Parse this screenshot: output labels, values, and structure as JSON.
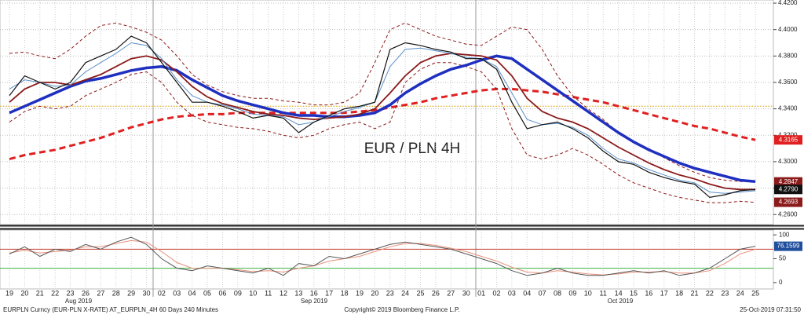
{
  "chart_data": {
    "type": "line",
    "annotation": "EUR / PLN 4H",
    "annotation_color": "#cc1f1f",
    "categories": [
      "19",
      "20",
      "21",
      "22",
      "23",
      "26",
      "27",
      "28",
      "29",
      "30",
      "02",
      "03",
      "04",
      "05",
      "06",
      "09",
      "10",
      "11",
      "12",
      "13",
      "16",
      "17",
      "18",
      "19",
      "20",
      "23",
      "24",
      "25",
      "26",
      "27",
      "30",
      "01",
      "02",
      "03",
      "04",
      "07",
      "08",
      "09",
      "10",
      "11",
      "14",
      "15",
      "16",
      "17",
      "18",
      "21",
      "22",
      "23",
      "24",
      "25"
    ],
    "months": [
      "Aug 2019",
      "Sep 2019",
      "Oct 2019"
    ],
    "ylim": [
      4.253,
      4.4224
    ],
    "yticks": [
      {
        "value": 4.26,
        "label": "4.2600"
      },
      {
        "value": 4.28,
        "label": "4.2800"
      },
      {
        "value": 4.3,
        "label": "4.3000"
      },
      {
        "value": 4.32,
        "label": "4.3200"
      },
      {
        "value": 4.34,
        "label": "4.3400"
      },
      {
        "value": 4.36,
        "label": "4.3600"
      },
      {
        "value": 4.38,
        "label": "4.3800"
      },
      {
        "value": 4.4,
        "label": "4.4000"
      },
      {
        "value": 4.42,
        "label": "4.4200"
      }
    ],
    "grid": true,
    "reference_line": {
      "value": 4.342,
      "color": "#d9a400"
    },
    "series": [
      {
        "color": "#e02020",
        "line_width": 3,
        "style": "dashed",
        "values": [
          4.302,
          4.305,
          4.307,
          4.309,
          4.312,
          4.315,
          4.318,
          4.322,
          4.326,
          4.329,
          4.332,
          4.334,
          4.335,
          4.336,
          4.336,
          4.337,
          4.337,
          4.337,
          4.337,
          4.337,
          4.337,
          4.337,
          4.337,
          4.338,
          4.339,
          4.341,
          4.343,
          4.345,
          4.348,
          4.35,
          4.352,
          4.354,
          4.355,
          4.355,
          4.354,
          4.353,
          4.351,
          4.349,
          4.347,
          4.345,
          4.342,
          4.339,
          4.336,
          4.333,
          4.33,
          4.327,
          4.325,
          4.322,
          4.319,
          4.3165
        ]
      },
      {
        "color": "#8b1a1a",
        "line_width": 1,
        "style": "dashed",
        "values": [
          4.382,
          4.383,
          4.38,
          4.378,
          4.385,
          4.395,
          4.403,
          4.405,
          4.402,
          4.398,
          4.392,
          4.38,
          4.366,
          4.358,
          4.353,
          4.35,
          4.348,
          4.348,
          4.346,
          4.345,
          4.343,
          4.343,
          4.345,
          4.352,
          4.375,
          4.4,
          4.405,
          4.4,
          4.395,
          4.392,
          4.389,
          4.388,
          4.395,
          4.402,
          4.4,
          4.385,
          4.365,
          4.35,
          4.34,
          4.332,
          4.322,
          4.315,
          4.31,
          4.303,
          4.297,
          4.292,
          4.288,
          4.286,
          4.285,
          4.2847
        ]
      },
      {
        "color": "#8b1a1a",
        "line_width": 1,
        "style": "dashed",
        "values": [
          4.33,
          4.338,
          4.342,
          4.34,
          4.342,
          4.35,
          4.355,
          4.36,
          4.366,
          4.368,
          4.36,
          4.345,
          4.335,
          4.33,
          4.328,
          4.326,
          4.325,
          4.323,
          4.32,
          4.318,
          4.32,
          4.325,
          4.328,
          4.33,
          4.325,
          4.33,
          4.36,
          4.37,
          4.375,
          4.375,
          4.372,
          4.368,
          4.355,
          4.325,
          4.305,
          4.302,
          4.305,
          4.31,
          4.305,
          4.298,
          4.29,
          4.284,
          4.28,
          4.276,
          4.273,
          4.271,
          4.269,
          4.269,
          4.27,
          4.2693
        ]
      },
      {
        "color": "#1f2fbf",
        "line_width": 3.5,
        "style": "solid",
        "values": [
          4.337,
          4.342,
          4.347,
          4.352,
          4.357,
          4.361,
          4.363,
          4.366,
          4.369,
          4.371,
          4.372,
          4.369,
          4.362,
          4.356,
          4.35,
          4.346,
          4.343,
          4.34,
          4.337,
          4.335,
          4.335,
          4.334,
          4.334,
          4.335,
          4.337,
          4.343,
          4.352,
          4.359,
          4.365,
          4.37,
          4.373,
          4.377,
          4.38,
          4.378,
          4.37,
          4.362,
          4.354,
          4.346,
          4.338,
          4.33,
          4.322,
          4.315,
          4.309,
          4.304,
          4.299,
          4.295,
          4.292,
          4.289,
          4.286,
          4.285
        ]
      },
      {
        "color": "#8b1a1a",
        "line_width": 1.8,
        "style": "solid",
        "values": [
          4.345,
          4.355,
          4.36,
          4.36,
          4.358,
          4.362,
          4.366,
          4.372,
          4.378,
          4.38,
          4.377,
          4.368,
          4.357,
          4.349,
          4.344,
          4.341,
          4.338,
          4.336,
          4.335,
          4.333,
          4.332,
          4.333,
          4.334,
          4.336,
          4.34,
          4.352,
          4.365,
          4.375,
          4.38,
          4.382,
          4.381,
          4.38,
          4.377,
          4.365,
          4.348,
          4.338,
          4.333,
          4.33,
          4.325,
          4.318,
          4.311,
          4.305,
          4.299,
          4.294,
          4.29,
          4.287,
          4.283,
          4.28,
          4.279,
          4.279
        ]
      },
      {
        "color": "#5a8fc8",
        "line_width": 1,
        "style": "solid",
        "values": [
          4.355,
          4.362,
          4.36,
          4.357,
          4.358,
          4.368,
          4.375,
          4.382,
          4.39,
          4.388,
          4.378,
          4.362,
          4.35,
          4.345,
          4.343,
          4.34,
          4.336,
          4.335,
          4.334,
          4.328,
          4.33,
          4.334,
          4.338,
          4.341,
          4.345,
          4.372,
          4.385,
          4.386,
          4.384,
          4.382,
          4.379,
          4.378,
          4.372,
          4.352,
          4.332,
          4.328,
          4.329,
          4.326,
          4.32,
          4.31,
          4.302,
          4.299,
          4.294,
          4.29,
          4.286,
          4.284,
          4.277,
          4.276,
          4.277,
          4.278
        ]
      },
      {
        "color": "#111111",
        "line_width": 1.2,
        "style": "solid",
        "values": [
          4.35,
          4.365,
          4.36,
          4.355,
          4.36,
          4.375,
          4.38,
          4.385,
          4.395,
          4.39,
          4.375,
          4.36,
          4.345,
          4.345,
          4.342,
          4.338,
          4.333,
          4.335,
          4.333,
          4.322,
          4.33,
          4.335,
          4.34,
          4.342,
          4.345,
          4.385,
          4.39,
          4.388,
          4.385,
          4.383,
          4.378,
          4.378,
          4.37,
          4.345,
          4.325,
          4.328,
          4.33,
          4.325,
          4.318,
          4.308,
          4.3,
          4.298,
          4.292,
          4.288,
          4.285,
          4.283,
          4.273,
          4.275,
          4.278,
          4.279
        ]
      }
    ],
    "price_labels": [
      {
        "value": 4.3165,
        "label": "4.3165",
        "color": "#e02020"
      },
      {
        "value": 4.2847,
        "label": "4.2847",
        "color": "#8b1a1a"
      },
      {
        "value": 4.279,
        "label": "4.2790",
        "color": "#111111"
      },
      {
        "value": 4.2693,
        "label": "4.2693",
        "color": "#8b1a1a"
      }
    ],
    "oscillator": {
      "ylim": [
        -20,
        120
      ],
      "yticks": [
        0,
        50,
        100
      ],
      "levels": [
        {
          "value": 70,
          "color": "#c0392b"
        },
        {
          "value": 30,
          "color": "#3cb043"
        }
      ],
      "series": [
        {
          "color": "#e8907a",
          "values": [
            62,
            68,
            62,
            65,
            68,
            75,
            75,
            82,
            88,
            85,
            65,
            42,
            30,
            30,
            30,
            27,
            23,
            25,
            22,
            30,
            35,
            45,
            50,
            55,
            65,
            75,
            82,
            82,
            78,
            72,
            65,
            55,
            45,
            32,
            22,
            20,
            25,
            22,
            18,
            16,
            18,
            22,
            22,
            23,
            20,
            20,
            25,
            40,
            60,
            70
          ]
        },
        {
          "color": "#555555",
          "values": [
            60,
            75,
            55,
            70,
            65,
            80,
            70,
            85,
            95,
            80,
            50,
            30,
            25,
            35,
            30,
            25,
            20,
            30,
            15,
            40,
            35,
            55,
            50,
            60,
            70,
            80,
            85,
            80,
            75,
            70,
            60,
            50,
            40,
            25,
            15,
            20,
            30,
            20,
            15,
            15,
            20,
            25,
            20,
            25,
            15,
            20,
            30,
            50,
            70,
            76.1599
          ]
        }
      ],
      "last_label": {
        "value": 76.1599,
        "color": "#1f4e9c"
      }
    },
    "footer_left": "EURPLN Curncy (EUR-PLN X-RATE) AT_EURPLN_4H 60 Days 240 Minutes",
    "copyright": "Copyright© 2019 Bloomberg Finance L.P.",
    "timestamp": "25-Oct-2019 07:31:50"
  }
}
